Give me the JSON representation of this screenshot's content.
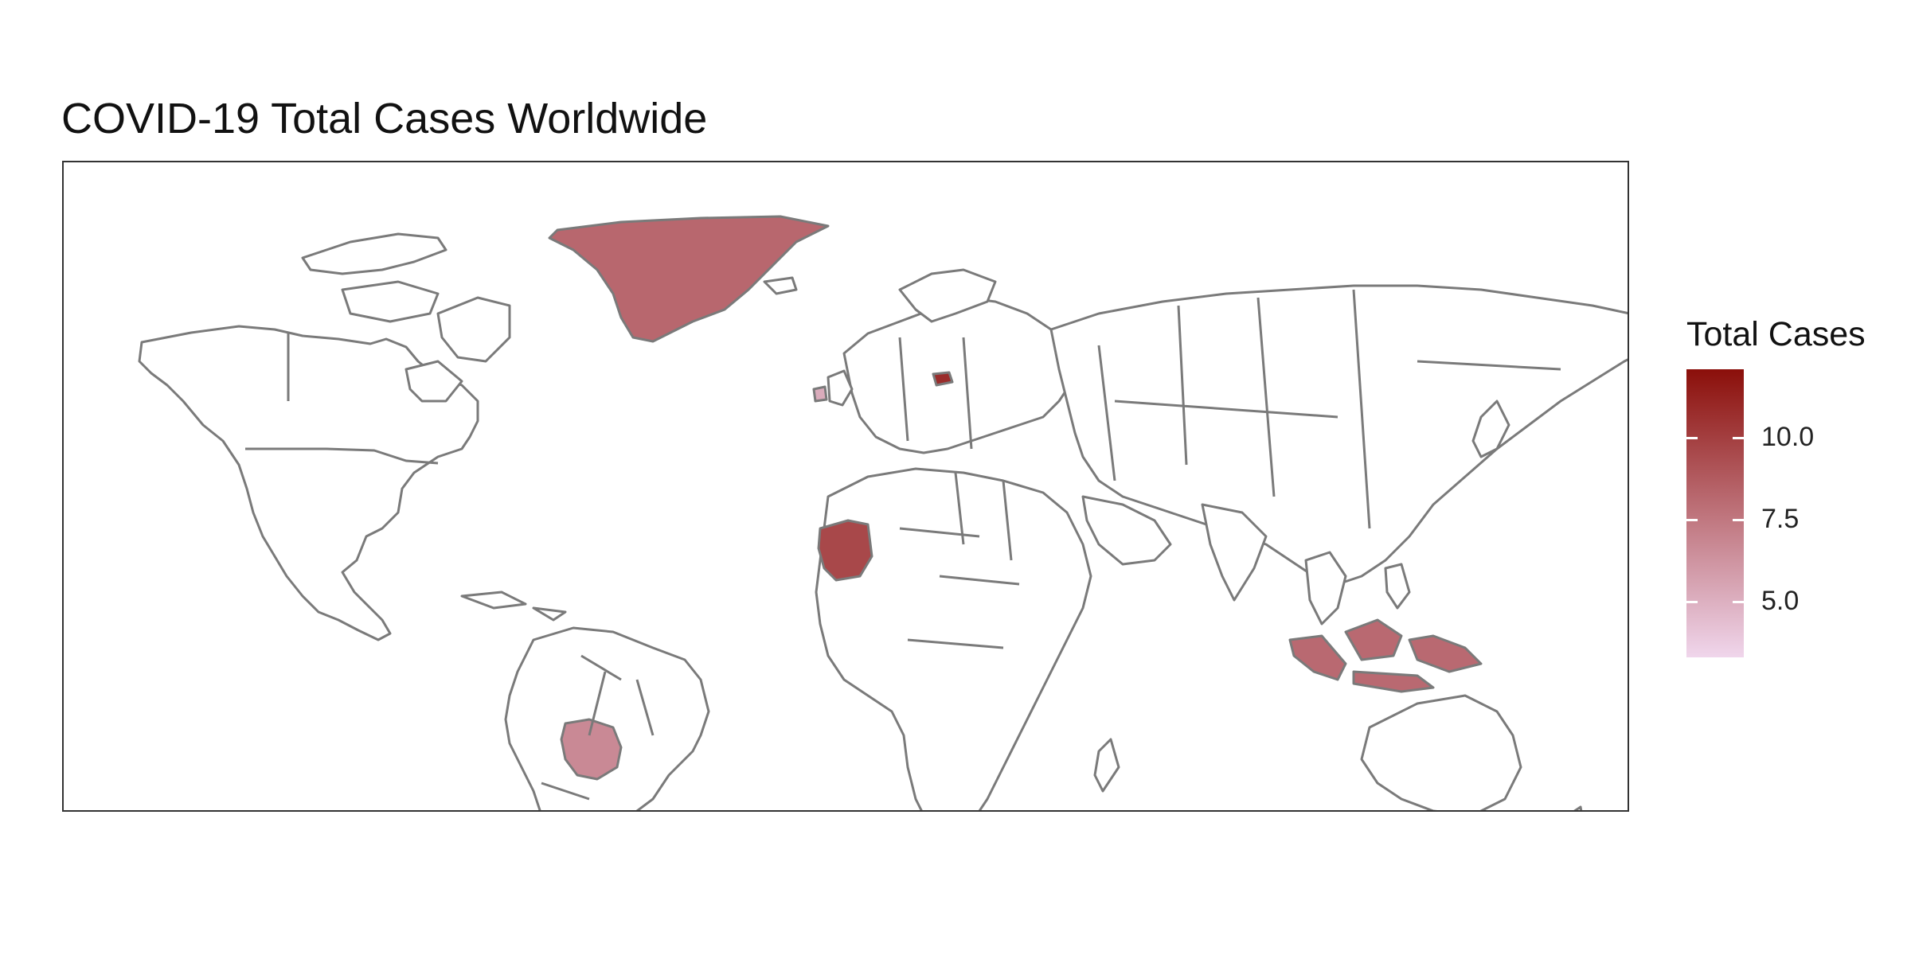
{
  "chart_data": {
    "type": "choropleth-map",
    "title": "COVID-19 Total Cases Worldwide",
    "projection": "equirectangular",
    "background": "#ffffff",
    "border_color": "#7a7a7a",
    "default_fill": "#ffffff",
    "legend": {
      "title": "Total Cases",
      "placement": "right",
      "min": 3.3,
      "max": 12.1,
      "low_color": "#f0d6ec",
      "high_color": "#8b0f0a",
      "ticks": [
        {
          "value": 10.0,
          "label": "10.0"
        },
        {
          "value": 7.5,
          "label": "7.5"
        },
        {
          "value": 5.0,
          "label": "5.0"
        }
      ]
    },
    "regions": [
      {
        "name": "Greenland",
        "value": 8.2
      },
      {
        "name": "Mauritania",
        "value": 9.6
      },
      {
        "name": "Bolivia",
        "value": 6.7
      },
      {
        "name": "Indonesia",
        "value": 8.1
      },
      {
        "name": "Lithuania",
        "value": 10.8
      },
      {
        "name": "Ireland",
        "value": 5.2
      }
    ]
  }
}
